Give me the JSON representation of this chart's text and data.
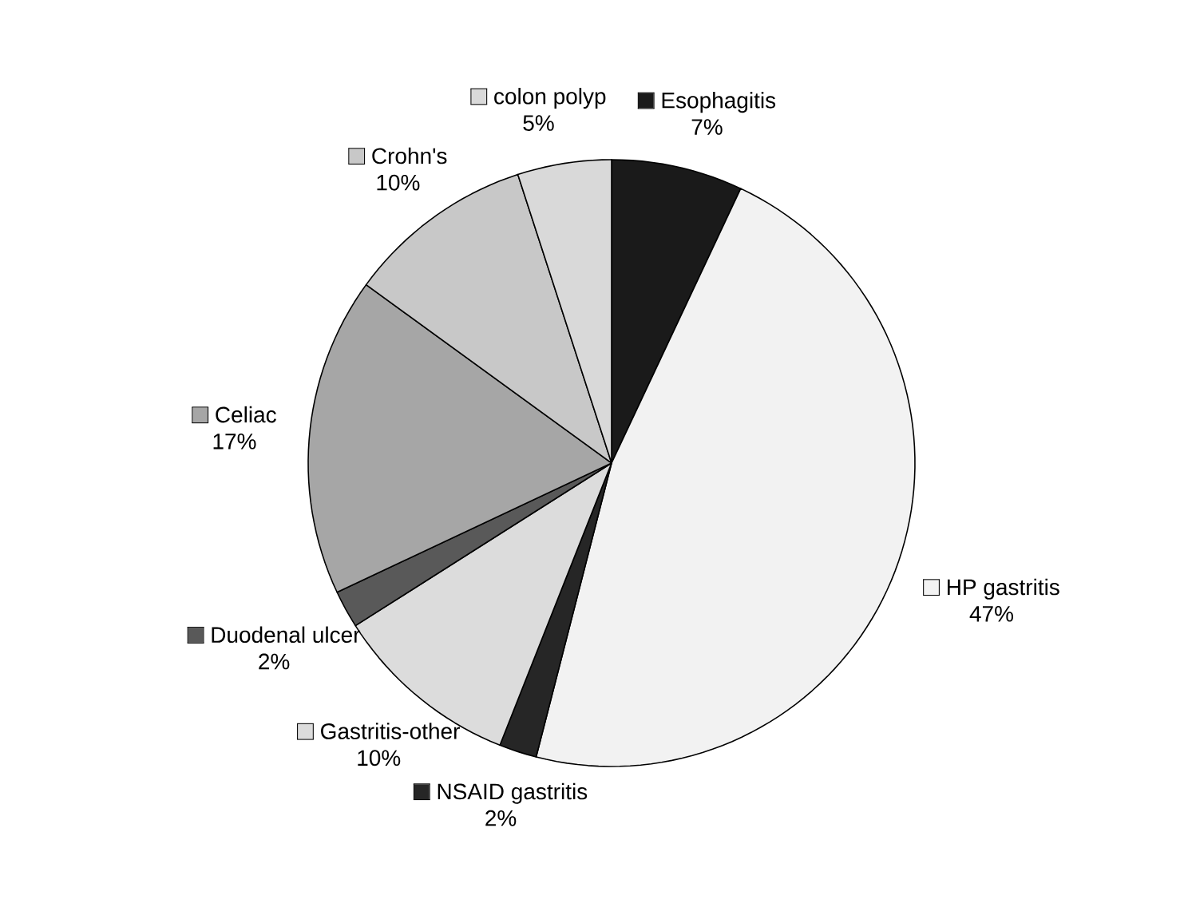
{
  "chart_data": {
    "type": "pie",
    "legend": "right",
    "categories": [
      "Esophagitis",
      "HP gastritis",
      "NSAID gastritis",
      "Gastritis-other",
      "Duodenal ulcer",
      "Celiac",
      "Crohn's",
      "colon polyp"
    ],
    "values": [
      7,
      47,
      2,
      10,
      2,
      17,
      10,
      5
    ],
    "value_labels": [
      "7%",
      "47%",
      "2%",
      "10%",
      "2%",
      "17%",
      "10%",
      "5%"
    ],
    "colors": [
      "#1a1a1a",
      "#f2f2f2",
      "#262626",
      "#dcdcdc",
      "#595959",
      "#a6a6a6",
      "#c8c8c8",
      "#d9d9d9"
    ]
  }
}
